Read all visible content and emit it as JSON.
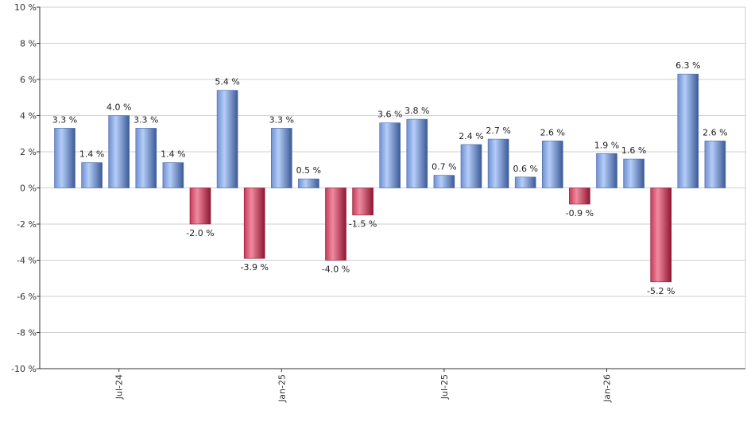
{
  "chart_data": {
    "type": "bar",
    "title": "",
    "xlabel": "",
    "ylabel": "",
    "ylim": [
      -10,
      10
    ],
    "y_ticks": [
      10,
      8,
      6,
      4,
      2,
      0,
      -2,
      -4,
      -6,
      -8,
      -10
    ],
    "y_tick_labels": [
      "10 %",
      "8 %",
      "6 %",
      "4 %",
      "2 %",
      "0 %",
      "-2 %",
      "-4 %",
      "-6 %",
      "-8 %",
      "-10 %"
    ],
    "grid": true,
    "x_tick_labels": [
      {
        "label": "Jul-24",
        "index": 2
      },
      {
        "label": "Jan-25",
        "index": 8
      },
      {
        "label": "Jul-25",
        "index": 14
      },
      {
        "label": "Jan-26",
        "index": 20
      }
    ],
    "values": [
      3.3,
      1.4,
      4.0,
      3.3,
      1.4,
      -2.0,
      5.4,
      -3.9,
      3.3,
      0.5,
      -4.0,
      -1.5,
      3.6,
      3.8,
      0.7,
      2.4,
      2.7,
      0.6,
      2.6,
      -0.9,
      1.9,
      1.6,
      -5.2,
      6.3,
      2.6
    ],
    "value_labels": [
      "3.3 %",
      "1.4 %",
      "4.0 %",
      "3.3 %",
      "1.4 %",
      "-2.0 %",
      "5.4 %",
      "-3.9 %",
      "3.3 %",
      "0.5 %",
      "-4.0 %",
      "-1.5 %",
      "3.6 %",
      "3.8 %",
      "0.7 %",
      "2.4 %",
      "2.7 %",
      "0.6 %",
      "2.6 %",
      "-0.9 %",
      "1.9 %",
      "1.6 %",
      "-5.2 %",
      "6.3 %",
      "2.6 %"
    ],
    "colors": {
      "positive_light": "#a9c3f5",
      "positive_dark": "#3e5f9c",
      "negative_light": "#f08aa0",
      "negative_dark": "#9c1a36",
      "grid": "#cfcfcf",
      "axis": "#333333"
    }
  }
}
